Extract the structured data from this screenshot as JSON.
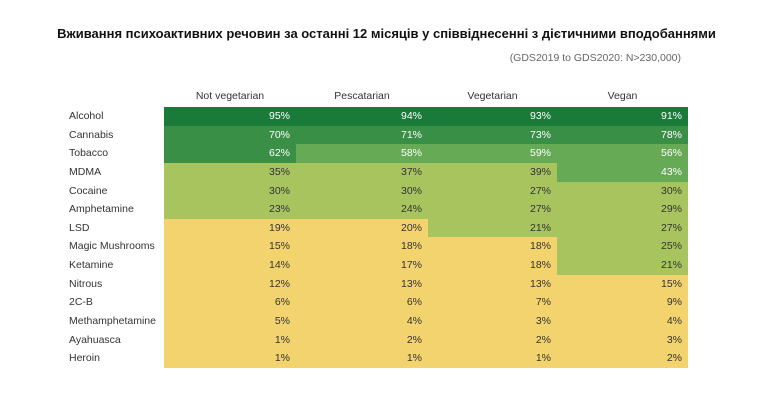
{
  "title": "Вживання психоактивних речовин за останні 12 місяців у співвіднесенні з дієтичними вподобаннями",
  "subtitle": "(GDS2019 to GDS2020: N>230,000)",
  "chart_data": {
    "type": "heatmap",
    "title": "Вживання психоактивних речовин за останні 12 місяців у співвіднесенні з дієтичними вподобаннями",
    "subtitle": "(GDS2019 to GDS2020: N>230,000)",
    "columns": [
      "Not vegetarian",
      "Pescatarian",
      "Vegetarian",
      "Vegan"
    ],
    "rows": [
      "Alcohol",
      "Cannabis",
      "Tobacco",
      "MDMA",
      "Cocaine",
      "Amphetamine",
      "LSD",
      "Magic Mushrooms",
      "Ketamine",
      "Nitrous",
      "2C-B",
      "Methamphetamine",
      "Ayahuasca",
      "Heroin"
    ],
    "values": [
      [
        95,
        94,
        93,
        91
      ],
      [
        70,
        71,
        73,
        78
      ],
      [
        62,
        58,
        59,
        56
      ],
      [
        35,
        37,
        39,
        43
      ],
      [
        30,
        30,
        27,
        30
      ],
      [
        23,
        24,
        27,
        29
      ],
      [
        19,
        20,
        21,
        27
      ],
      [
        15,
        18,
        18,
        25
      ],
      [
        14,
        17,
        18,
        21
      ],
      [
        12,
        13,
        13,
        15
      ],
      [
        6,
        6,
        7,
        9
      ],
      [
        5,
        4,
        3,
        4
      ],
      [
        1,
        2,
        2,
        3
      ],
      [
        1,
        1,
        1,
        2
      ]
    ],
    "value_suffix": "%",
    "colors": {
      "very_high": "#1a7a3a",
      "high": "#3a8f47",
      "mid": "#66aa55",
      "low_mid": "#a8c45e",
      "low": "#f3d36e"
    }
  }
}
